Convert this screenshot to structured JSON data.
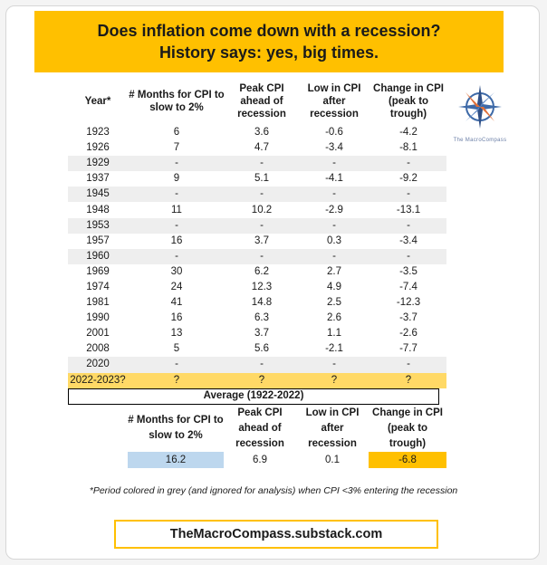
{
  "banner": {
    "line1": "Does inflation come down with a recession?",
    "line2": "History says: yes, big times."
  },
  "table": {
    "headers": [
      "Year*",
      "# Months for CPI to slow to 2%",
      "Peak CPI ahead of recession",
      "Low in CPI after recession",
      "Change in CPI (peak to trough)"
    ],
    "rows": [
      {
        "cells": [
          "1923",
          "6",
          "3.6",
          "-0.6",
          "-4.2"
        ],
        "grey": false
      },
      {
        "cells": [
          "1926",
          "7",
          "4.7",
          "-3.4",
          "-8.1"
        ],
        "grey": false
      },
      {
        "cells": [
          "1929",
          "-",
          "-",
          "-",
          "-"
        ],
        "grey": true
      },
      {
        "cells": [
          "1937",
          "9",
          "5.1",
          "-4.1",
          "-9.2"
        ],
        "grey": false
      },
      {
        "cells": [
          "1945",
          "-",
          "-",
          "-",
          "-"
        ],
        "grey": true
      },
      {
        "cells": [
          "1948",
          "11",
          "10.2",
          "-2.9",
          "-13.1"
        ],
        "grey": false
      },
      {
        "cells": [
          "1953",
          "-",
          "-",
          "-",
          "-"
        ],
        "grey": true
      },
      {
        "cells": [
          "1957",
          "16",
          "3.7",
          "0.3",
          "-3.4"
        ],
        "grey": false
      },
      {
        "cells": [
          "1960",
          "-",
          "-",
          "-",
          "-"
        ],
        "grey": true
      },
      {
        "cells": [
          "1969",
          "30",
          "6.2",
          "2.7",
          "-3.5"
        ],
        "grey": false
      },
      {
        "cells": [
          "1974",
          "24",
          "12.3",
          "4.9",
          "-7.4"
        ],
        "grey": false
      },
      {
        "cells": [
          "1981",
          "41",
          "14.8",
          "2.5",
          "-12.3"
        ],
        "grey": false
      },
      {
        "cells": [
          "1990",
          "16",
          "6.3",
          "2.6",
          "-3.7"
        ],
        "grey": false
      },
      {
        "cells": [
          "2001",
          "13",
          "3.7",
          "1.1",
          "-2.6"
        ],
        "grey": false
      },
      {
        "cells": [
          "2008",
          "5",
          "5.6",
          "-2.1",
          "-7.7"
        ],
        "grey": false
      },
      {
        "cells": [
          "2020",
          "-",
          "-",
          "-",
          "-"
        ],
        "grey": true
      }
    ],
    "highlight_row": [
      "2022-2023?",
      "?",
      "?",
      "?",
      "?"
    ]
  },
  "logo": {
    "icon": "compass-star-icon",
    "text": "The MacroCompass"
  },
  "average": {
    "title": "Average (1922-2022)",
    "headers": [
      "# Months for CPI to slow to 2%",
      "Peak CPI ahead of recession",
      "Low in CPI after recession",
      "Change in CPI (peak to trough)"
    ],
    "values": [
      "16.2",
      "6.9",
      "0.1",
      "-6.8"
    ]
  },
  "footnote": "*Period colored in grey (and ignored for analysis) when CPI  <3% entering the recession",
  "footer": "TheMacroCompass.substack.com",
  "colors": {
    "banner": "#ffc000",
    "grey_row": "#eeeeee",
    "highlight_row": "#ffd966",
    "blue_cell": "#bdd7ee",
    "orange_cell": "#ffc000"
  }
}
